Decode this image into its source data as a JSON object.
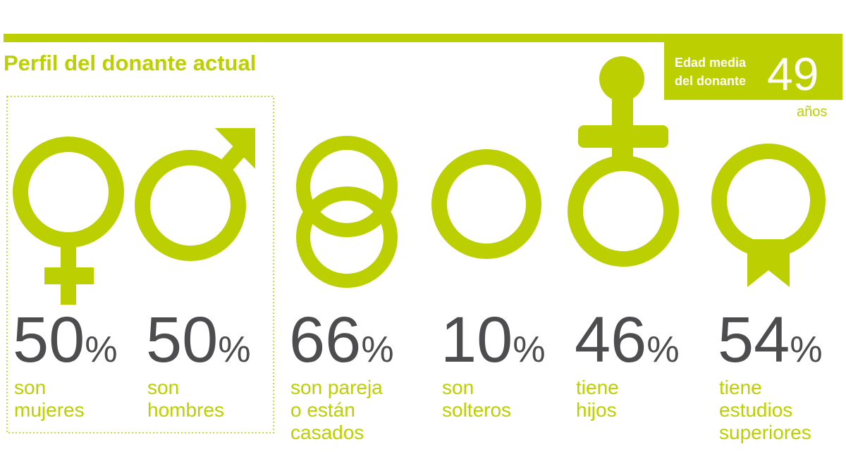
{
  "header": {
    "title": "Perfil del donante actual"
  },
  "age": {
    "label_lines": [
      "Edad media",
      "del donante"
    ],
    "value": "49",
    "unit": "años"
  },
  "stats": [
    {
      "value": "50",
      "unit": "%",
      "label_lines": [
        "son",
        "mujeres"
      ]
    },
    {
      "value": "50",
      "unit": "%",
      "label_lines": [
        "son",
        "hombres"
      ]
    },
    {
      "value": "66",
      "unit": "%",
      "label_lines": [
        "son pareja",
        "o están",
        "casados"
      ]
    },
    {
      "value": "10",
      "unit": "%",
      "label_lines": [
        "son",
        "solteros"
      ]
    },
    {
      "value": "46",
      "unit": "%",
      "label_lines": [
        "tiene",
        "hijos"
      ]
    },
    {
      "value": "54",
      "unit": "%",
      "label_lines": [
        "tiene",
        "estudios",
        "superiores"
      ]
    }
  ]
}
